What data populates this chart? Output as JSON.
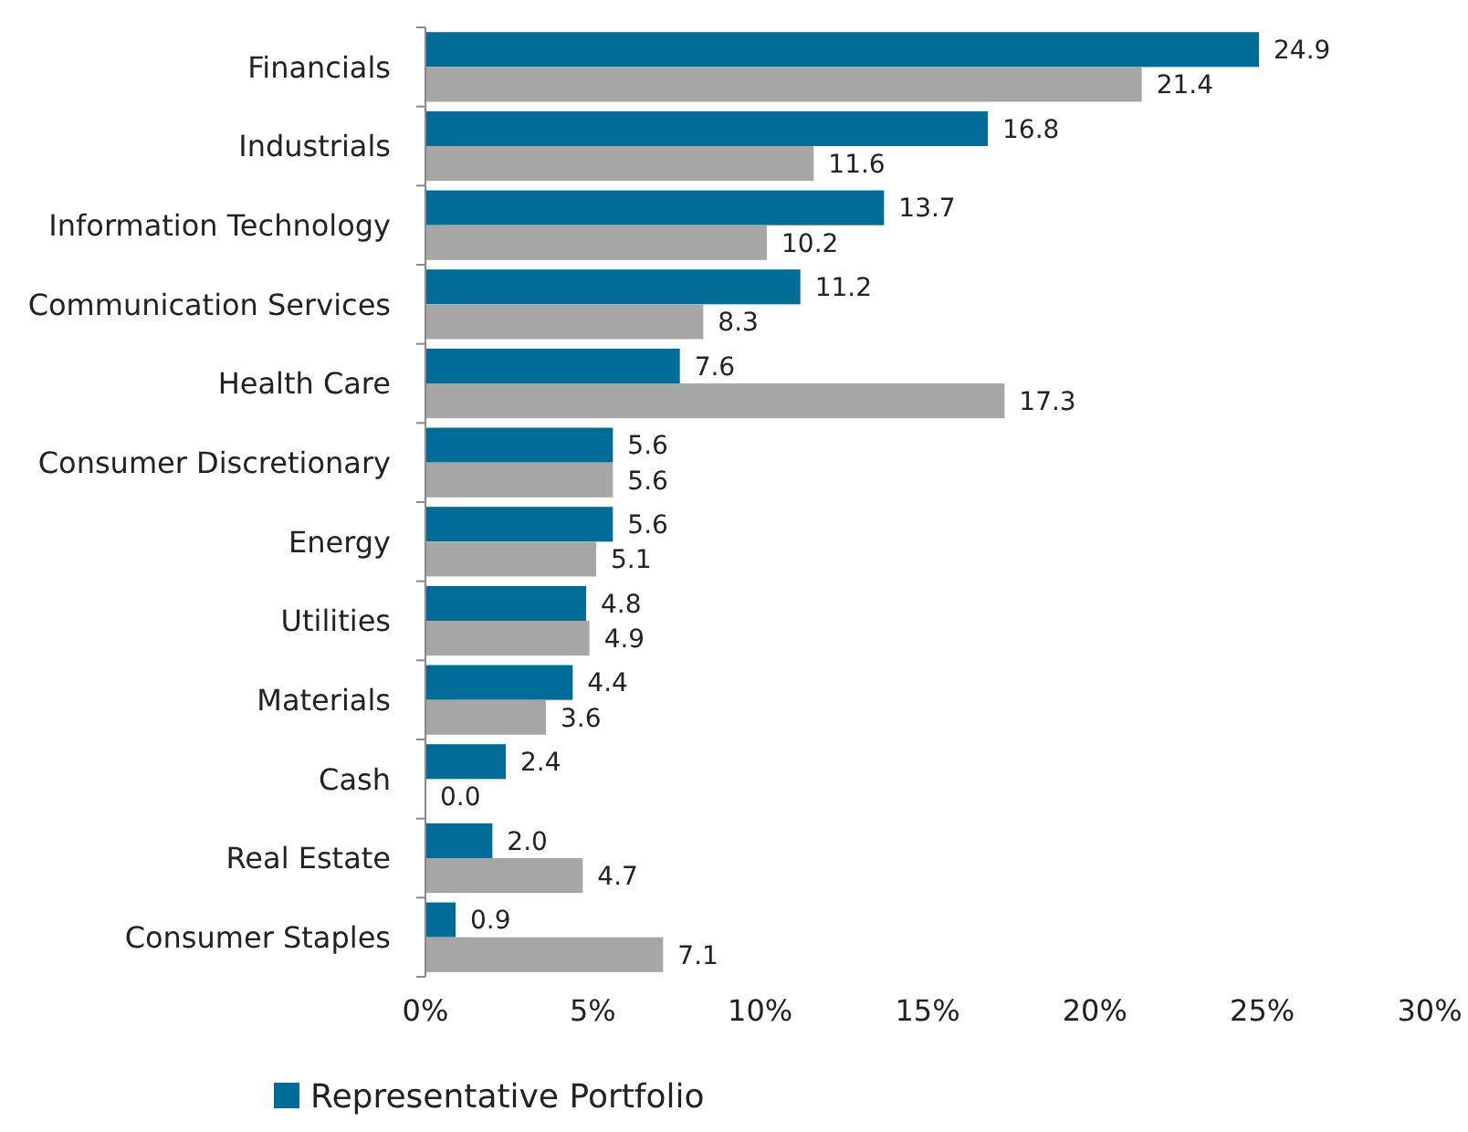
{
  "chart_data": {
    "type": "bar",
    "orientation": "horizontal",
    "categories": [
      "Financials",
      "Industrials",
      "Information Technology",
      "Communication Services",
      "Health Care",
      "Consumer Discretionary",
      "Energy",
      "Utilities",
      "Materials",
      "Cash",
      "Real Estate",
      "Consumer Staples"
    ],
    "series": [
      {
        "name": "Representative Portfolio",
        "color": "#006d98",
        "values": [
          24.9,
          16.8,
          13.7,
          11.2,
          7.6,
          5.6,
          5.6,
          4.8,
          4.4,
          2.4,
          2.0,
          0.9
        ],
        "value_labels": [
          "24.9",
          "16.8",
          "13.7",
          "11.2",
          "7.6",
          "5.6",
          "5.6",
          "4.8",
          "4.4",
          "2.4",
          "2.0",
          "0.9"
        ]
      },
      {
        "color": "#a6a6a6",
        "values": [
          21.4,
          11.6,
          10.2,
          8.3,
          17.3,
          5.6,
          5.1,
          4.9,
          3.6,
          0.0,
          4.7,
          7.1
        ],
        "value_labels": [
          "21.4",
          "11.6",
          "10.2",
          "8.3",
          "17.3",
          "5.6",
          "5.1",
          "4.9",
          "3.6",
          "0.0",
          "4.7",
          "7.1"
        ]
      }
    ],
    "xlim": [
      0,
      30
    ],
    "xticks": [
      {
        "value": 0,
        "label": "0%"
      },
      {
        "value": 5,
        "label": "5%"
      },
      {
        "value": 10,
        "label": "10%"
      },
      {
        "value": 15,
        "label": "15%"
      },
      {
        "value": 20,
        "label": "20%"
      },
      {
        "value": 25,
        "label": "25%"
      },
      {
        "value": 30,
        "label": "30%"
      }
    ],
    "grid": false,
    "legend": "bottom"
  }
}
